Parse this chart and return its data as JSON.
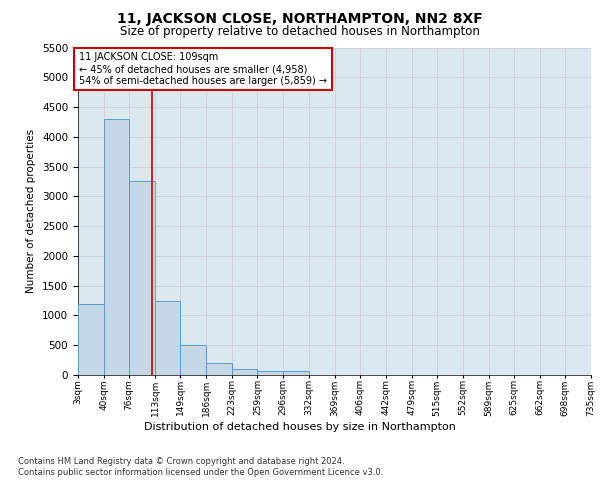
{
  "title1": "11, JACKSON CLOSE, NORTHAMPTON, NN2 8XF",
  "title2": "Size of property relative to detached houses in Northampton",
  "xlabel": "Distribution of detached houses by size in Northampton",
  "ylabel": "Number of detached properties",
  "footnote": "Contains HM Land Registry data © Crown copyright and database right 2024.\nContains public sector information licensed under the Open Government Licence v3.0.",
  "bin_edges": [
    3,
    40,
    76,
    113,
    149,
    186,
    223,
    259,
    296,
    332,
    369,
    406,
    442,
    479,
    515,
    552,
    589,
    625,
    662,
    698,
    735
  ],
  "bar_values": [
    1200,
    4300,
    3250,
    1250,
    500,
    200,
    100,
    75,
    60,
    0,
    0,
    0,
    0,
    0,
    0,
    0,
    0,
    0,
    0,
    0
  ],
  "bar_color": "#c5d8e8",
  "bar_edgecolor": "#5b9bd5",
  "bar_linewidth": 0.7,
  "grid_color": "#cccccc",
  "vline_x": 109,
  "vline_color": "#cc0000",
  "annotation_text": "11 JACKSON CLOSE: 109sqm\n← 45% of detached houses are smaller (4,958)\n54% of semi-detached houses are larger (5,859) →",
  "annotation_box_color": "#ffffff",
  "annotation_box_edgecolor": "#cc0000",
  "ylim": [
    0,
    5500
  ],
  "yticks": [
    0,
    500,
    1000,
    1500,
    2000,
    2500,
    3000,
    3500,
    4000,
    4500,
    5000,
    5500
  ],
  "tick_labels": [
    "3sqm",
    "40sqm",
    "76sqm",
    "113sqm",
    "149sqm",
    "186sqm",
    "223sqm",
    "259sqm",
    "296sqm",
    "332sqm",
    "369sqm",
    "406sqm",
    "442sqm",
    "479sqm",
    "515sqm",
    "552sqm",
    "589sqm",
    "625sqm",
    "662sqm",
    "698sqm",
    "735sqm"
  ],
  "background_color": "#dce8f0",
  "title1_fontsize": 10,
  "title2_fontsize": 8.5,
  "ylabel_fontsize": 7.5,
  "xlabel_fontsize": 8,
  "footnote_fontsize": 6
}
